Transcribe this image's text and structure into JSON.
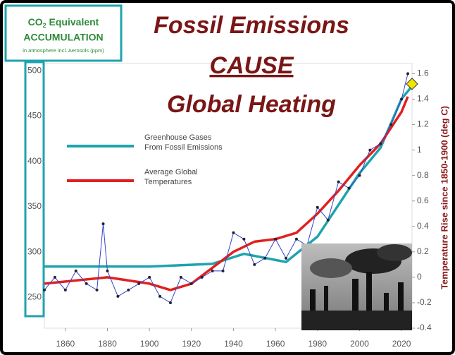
{
  "chart_data": {
    "type": "line",
    "title_lines": [
      "Fossil Emissions",
      "CAUSE",
      "Global Heating"
    ],
    "box_title": {
      "main": "CO",
      "sub": "2",
      "rest": " Equivalent",
      "line2": "ACCUMULATION",
      "note": "in atmosphere incl. Aerosols (ppm)"
    },
    "y2_label": "Temperature Rise since 1850-1900 (deg C)",
    "xlim": [
      1850,
      2025
    ],
    "xticks": [
      1860,
      1880,
      1900,
      1920,
      1940,
      1960,
      1980,
      2000,
      2020
    ],
    "ylim": [
      216,
      508
    ],
    "yticks": [
      250,
      300,
      350,
      400,
      450,
      500
    ],
    "y2lim": [
      -0.4,
      1.68
    ],
    "y2ticks": [
      -0.4,
      -0.2,
      0,
      0.2,
      0.4,
      0.6,
      0.8,
      1,
      1.2,
      1.4,
      1.6
    ],
    "series": [
      {
        "name": [
          "Greenhouse Gases",
          "From Fossil Emissions"
        ],
        "color": "#1fa3ad",
        "axis": "y",
        "x": [
          1850,
          1900,
          1930,
          1945,
          1965,
          1980,
          1990,
          2000,
          2010,
          2020,
          2025
        ],
        "values": [
          284,
          284,
          287,
          298,
          289,
          317,
          352,
          387,
          415,
          469,
          483
        ]
      },
      {
        "name": [
          "Average Global",
          "Temperatures"
        ],
        "color": "#e02020",
        "axis": "y2",
        "x": [
          1850,
          1880,
          1900,
          1910,
          1920,
          1940,
          1950,
          1960,
          1970,
          1980,
          1990,
          2000,
          2010,
          2020,
          2023
        ],
        "values": [
          -0.05,
          0,
          -0.05,
          -0.1,
          -0.05,
          0.2,
          0.28,
          0.3,
          0.35,
          0.5,
          0.68,
          0.88,
          1.05,
          1.3,
          1.42
        ]
      },
      {
        "color": "#3344cc",
        "axis": "y2",
        "x": [
          1850,
          1855,
          1860,
          1865,
          1870,
          1875,
          1878,
          1880,
          1885,
          1890,
          1895,
          1900,
          1905,
          1910,
          1915,
          1920,
          1925,
          1930,
          1935,
          1940,
          1945,
          1950,
          1955,
          1960,
          1965,
          1970,
          1975,
          1980,
          1985,
          1990,
          1995,
          2000,
          2005,
          2010,
          2015,
          2020,
          2023
        ],
        "values": [
          -0.1,
          0,
          -0.1,
          0.05,
          -0.05,
          -0.1,
          0.42,
          0.05,
          -0.15,
          -0.1,
          -0.05,
          0,
          -0.15,
          -0.2,
          0,
          -0.05,
          0,
          0.05,
          0.05,
          0.35,
          0.3,
          0.1,
          0.15,
          0.3,
          0.15,
          0.3,
          0.25,
          0.55,
          0.45,
          0.75,
          0.7,
          0.8,
          1,
          1.05,
          1.2,
          1.4,
          1.6
        ]
      }
    ],
    "highlight": {
      "x": 2025,
      "value": 1.52,
      "color": "#f2e600"
    }
  }
}
